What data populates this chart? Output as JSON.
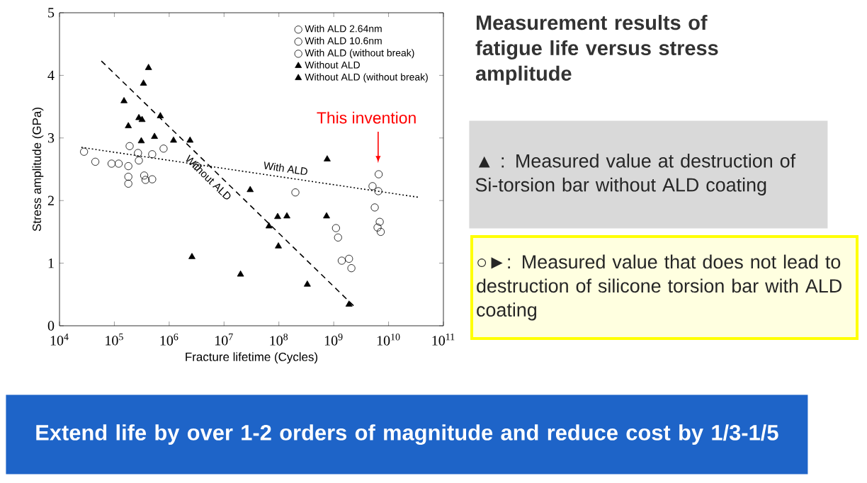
{
  "chart_data": {
    "type": "scatter",
    "title": "Measurement results of fatigue life versus stress amplitude",
    "xlabel": "Fracture lifetime  (Cycles)",
    "ylabel": "Stress amplitude  (GPa)",
    "log": "x",
    "xlim": [
      10000,
      100000000000
    ],
    "ylim": [
      0,
      5
    ],
    "xticks": [
      {
        "value": 10000,
        "label": "10$^{4}$"
      },
      {
        "value": 100000,
        "label": "10$^{5}$"
      },
      {
        "value": 1000000,
        "label": "10$^{6}$"
      },
      {
        "value": 10000000,
        "label": "10$^{7}$"
      },
      {
        "value": 100000000,
        "label": "10$^{8}$"
      },
      {
        "value": 1000000000,
        "label": "10$^{9}$"
      },
      {
        "value": 10000000000,
        "label": "10$^{10}$"
      },
      {
        "value": 100000000000,
        "label": "10$^{11}$"
      }
    ],
    "yticks": [
      0,
      1,
      2,
      3,
      4,
      5
    ],
    "grid": false,
    "legend": "top right",
    "series": [
      {
        "name": "With ALD 2.64nm",
        "color": "#000000",
        "marker": "circle",
        "x": [
          28000,
          45000,
          89000,
          120000,
          190000,
          180000,
          180000,
          180000,
          270000,
          350000,
          370000,
          490000,
          490000,
          790000,
          200000000
        ],
        "values": [
          2.78,
          2.62,
          2.59,
          2.59,
          2.87,
          2.55,
          2.38,
          2.27,
          2.76,
          2.4,
          2.33,
          2.34,
          2.74,
          2.83,
          2.13
        ]
      },
      {
        "name": "With ALD 10.6nm",
        "color": "#000000",
        "marker": "circle",
        "x": [
          280000,
          3200000
        ],
        "values": [
          2.64,
          2.55
        ]
      },
      {
        "name": "With ALD (without break)",
        "color": "#000000",
        "marker": "circle",
        "x": [
          6600000000,
          5100000000,
          6500000000,
          5600000000,
          6900000000,
          6300000000,
          7200000000,
          1100000000,
          1200000000,
          1400000000,
          1900000000,
          2100000000
        ],
        "values": [
          2.42,
          2.23,
          2.15,
          1.89,
          1.66,
          1.57,
          1.5,
          1.56,
          1.41,
          1.04,
          1.07,
          0.92
        ]
      },
      {
        "name": "Without ALD",
        "color": "#000000",
        "marker": "triangle",
        "x": [
          150000,
          180000,
          280000,
          320000,
          340000,
          420000,
          310000,
          540000,
          690000,
          1200000,
          2400000,
          2600000,
          20000000,
          30000000,
          95000000,
          140000000,
          66000000,
          98000000,
          330000000,
          760000000,
          740000000
        ],
        "values": [
          3.59,
          3.19,
          3.32,
          3.29,
          3.87,
          4.12,
          2.95,
          3.02,
          3.35,
          2.96,
          2.96,
          1.1,
          0.82,
          2.17,
          1.74,
          1.75,
          1.59,
          1.27,
          0.66,
          2.66,
          1.75
        ]
      },
      {
        "name": "Without ALD (without break)",
        "color": "#000000",
        "marker": "triangle",
        "x": [
          1900000000
        ],
        "values": [
          0.34
        ]
      },
      {
        "name": "With ALD",
        "type": "line",
        "color": "#000000",
        "line_style": "dotted",
        "x": [
          25000,
          37000000000
        ],
        "values": [
          2.85,
          2.05
        ]
      },
      {
        "name": "Without ALD",
        "type": "line",
        "color": "#000000",
        "line_style": "dashed",
        "x": [
          58000,
          2300000000
        ],
        "values": [
          4.23,
          0.32
        ]
      }
    ],
    "annotations": [
      "This invention",
      "▲ : Measured value at destruction of Si-torsion bar without ALD coating",
      "○►: Measured value that does not lead to destruction of silicone torsion bar with ALD coating",
      "Extend life by over 1-2 orders of magnitude and reduce cost by 1/3-1/5"
    ]
  }
}
